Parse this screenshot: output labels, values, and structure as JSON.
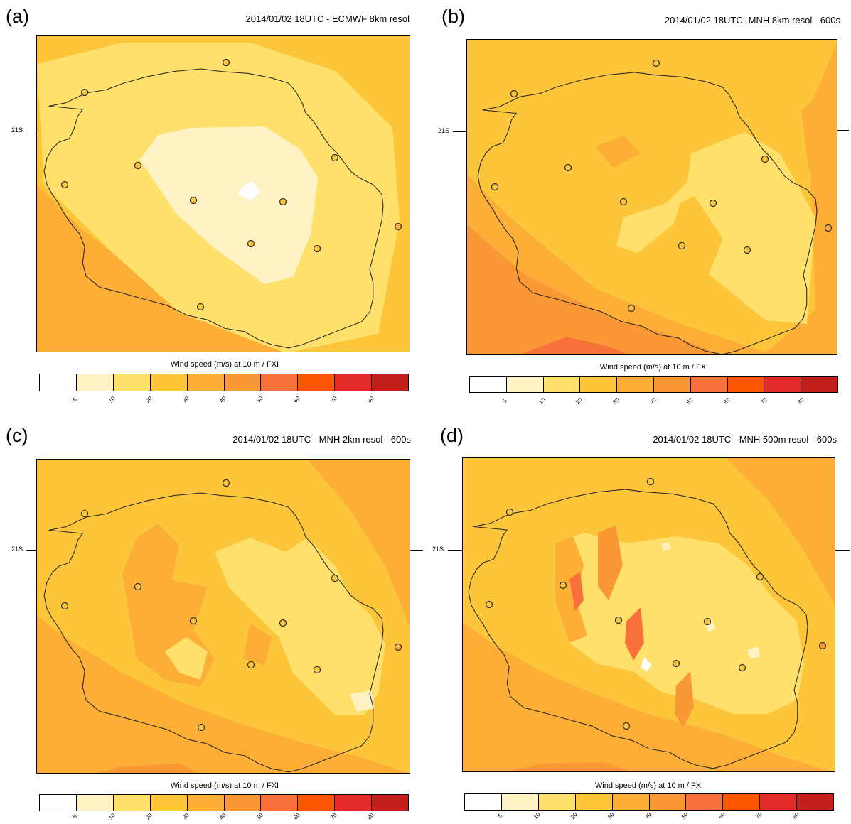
{
  "latitude_label": "21S",
  "colorbar": {
    "title": "Wind speed (m/s) at 10 m / FXI",
    "ticks": [
      "5",
      "10",
      "20",
      "30",
      "40",
      "50",
      "60",
      "70",
      "80"
    ],
    "colors": [
      "#ffffff",
      "#fff3c6",
      "#fee06b",
      "#fdc63a",
      "#fcae37",
      "#f99835",
      "#f8713b",
      "#fb5600",
      "#e32c2a",
      "#c3201c"
    ]
  },
  "panels": [
    {
      "letter": "(a)",
      "title": "2014/01/02 18UTC - ECMWF 8km resol"
    },
    {
      "letter": "(b)",
      "title": "2014/01/02 18UTC- MNH 8km resol - 600s"
    },
    {
      "letter": "(c)",
      "title": "2014/01/02 18UTC - MNH 2km resol - 600s"
    },
    {
      "letter": "(d)",
      "title": "2014/01/02 18UTC - MNH 500m resol - 600s"
    }
  ]
}
